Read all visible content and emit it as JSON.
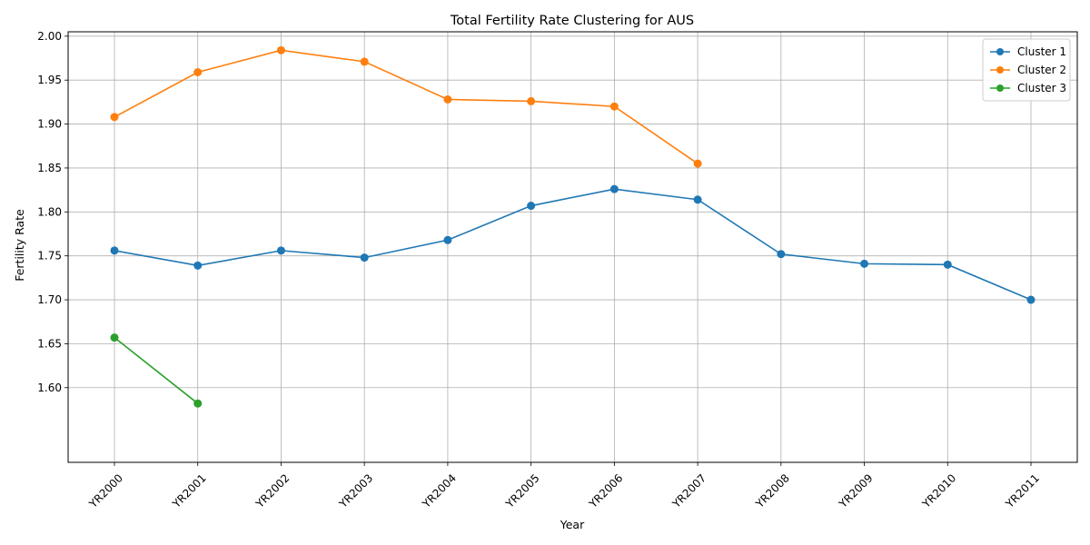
{
  "chart_data": {
    "type": "line",
    "title": "Total Fertility Rate Clustering for AUS",
    "xlabel": "Year",
    "ylabel": "Fertility Rate",
    "categories": [
      "YR2000",
      "YR2001",
      "YR2002",
      "YR2003",
      "YR2004",
      "YR2005",
      "YR2006",
      "YR2007",
      "YR2008",
      "YR2009",
      "YR2010",
      "YR2011"
    ],
    "ylim": [
      1.515,
      2.005
    ],
    "yticks": [
      "1.60",
      "1.65",
      "1.70",
      "1.75",
      "1.80",
      "1.85",
      "1.90",
      "1.95",
      "2.00"
    ],
    "grid": true,
    "legend_position": "top-right",
    "series": [
      {
        "name": "Cluster 1",
        "color": "#1f77b4",
        "values": [
          1.756,
          1.739,
          1.756,
          1.748,
          1.768,
          1.807,
          1.826,
          1.814,
          1.752,
          1.741,
          1.74,
          1.7
        ]
      },
      {
        "name": "Cluster 2",
        "color": "#ff7f0e",
        "values": [
          1.908,
          1.959,
          1.984,
          1.971,
          1.928,
          1.926,
          1.92,
          1.855,
          null,
          null,
          null,
          null
        ]
      },
      {
        "name": "Cluster 3",
        "color": "#2ca02c",
        "values": [
          1.657,
          1.582,
          null,
          null,
          null,
          null,
          null,
          null,
          null,
          null,
          null,
          null
        ]
      }
    ]
  }
}
